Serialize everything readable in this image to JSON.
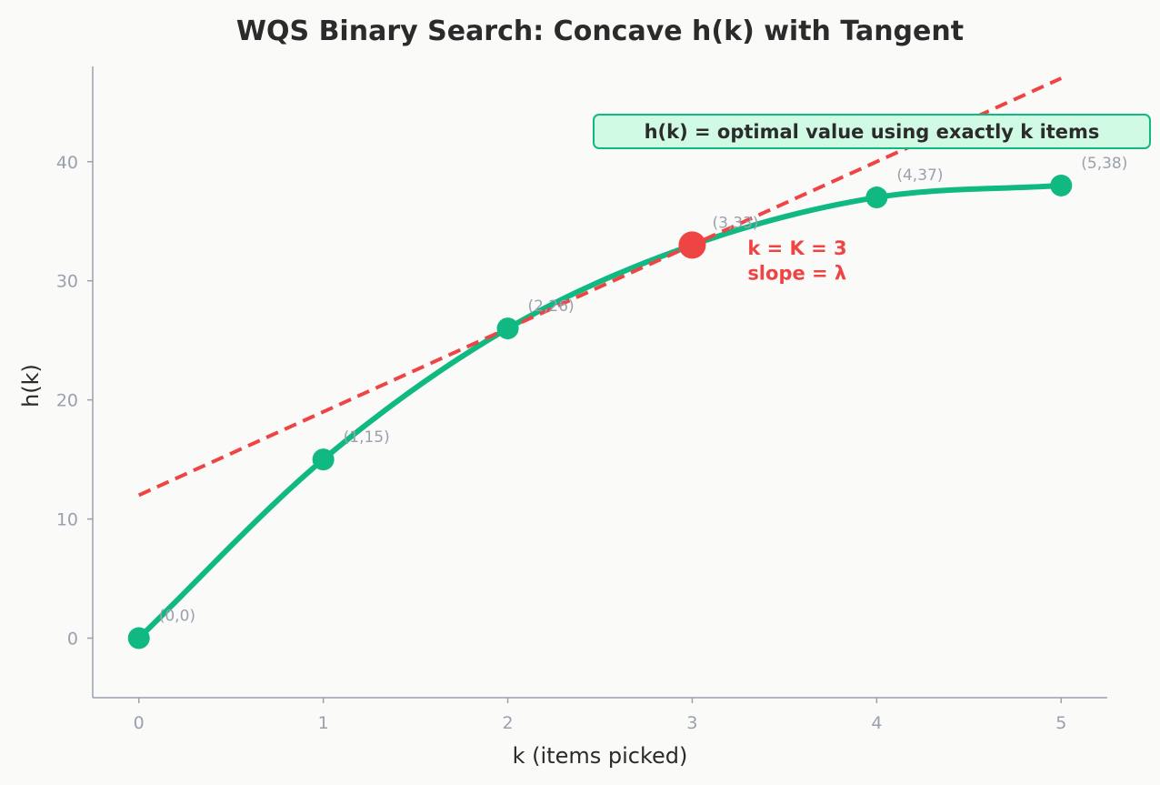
{
  "chart_data": {
    "type": "line",
    "title": "WQS Binary Search: Concave h(k) with Tangent",
    "xlabel": "k (items picked)",
    "ylabel": "h(k)",
    "xlim": [
      -0.25,
      5.25
    ],
    "ylim": [
      -5,
      48
    ],
    "x_ticks": [
      0,
      1,
      2,
      3,
      4,
      5
    ],
    "y_ticks": [
      0,
      10,
      20,
      30,
      40
    ],
    "grid": false,
    "series": [
      {
        "x": [
          0,
          1,
          2,
          3,
          4,
          5
        ],
        "values": [
          0,
          15,
          26,
          33,
          37,
          38
        ],
        "color": "#10b981"
      }
    ],
    "point_labels": [
      "(0,0)",
      "(1,15)",
      "(2,26)",
      "(3,33)",
      "(4,37)",
      "(5,38)"
    ],
    "highlight": {
      "x": 3,
      "y": 33,
      "color": "#ef4444"
    },
    "tangent": {
      "x": [
        0,
        5
      ],
      "y": [
        12,
        47
      ],
      "color": "#ef4444",
      "style": "dashed"
    },
    "annotations": [
      {
        "text": "k = K = 3",
        "x": 3.3,
        "y": 32.2
      },
      {
        "text": "slope = λ",
        "x": 3.3,
        "y": 30.1
      }
    ],
    "box_text": "h(k) = optimal value using exactly k items",
    "colors": {
      "curve": "#10b981",
      "highlight": "#ef4444",
      "box_fill": "#d1fae5",
      "box_border": "#10b981",
      "axis": "#9aa0ae"
    }
  }
}
